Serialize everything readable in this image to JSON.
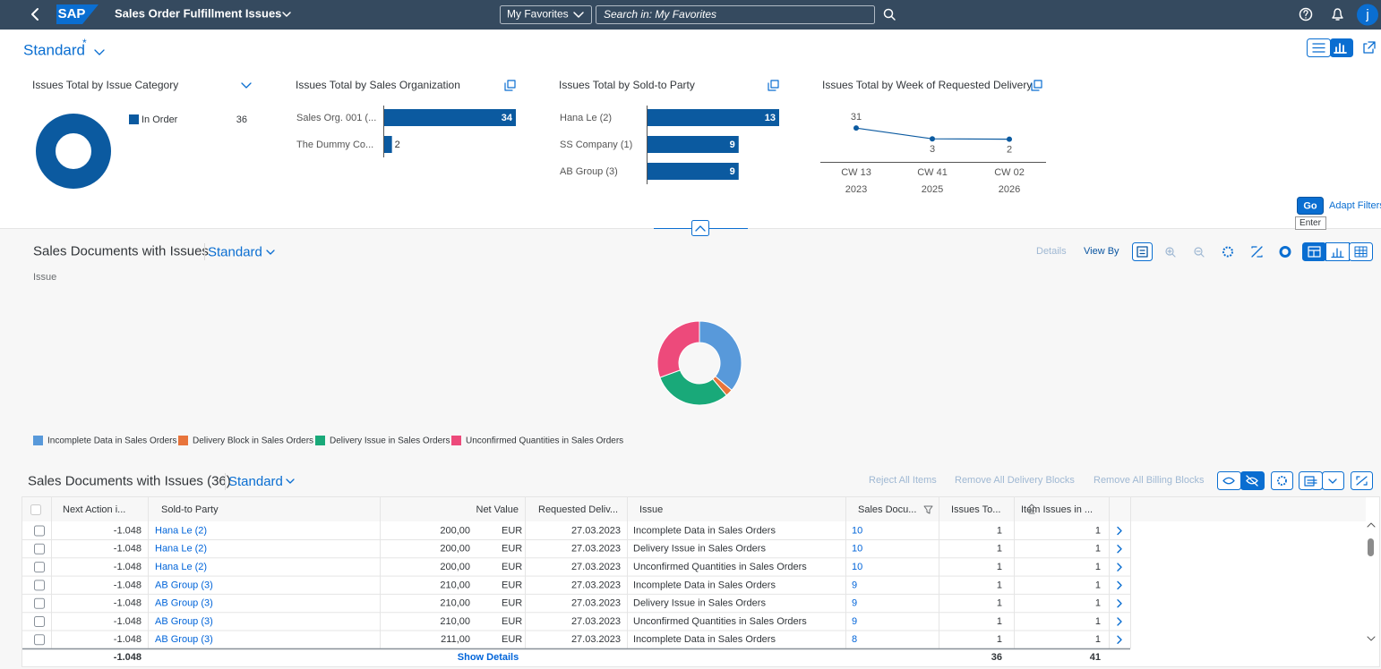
{
  "shell": {
    "logo": "SAP",
    "title": "Sales Order Fulfillment Issues",
    "favorites": "My Favorites",
    "search_placeholder": "Search in: My Favorites",
    "user": "j"
  },
  "variant": {
    "name": "Standard",
    "modified": "*"
  },
  "filter_charts": [
    {
      "type": "donut",
      "title": "Issues Total by Issue Category",
      "series": [
        {
          "name": "In Order",
          "value": 36,
          "color": "#0b5aa0"
        }
      ]
    },
    {
      "type": "bar",
      "title": "Issues Total by Sales Organization",
      "categories": [
        "Sales Org. 001 (...",
        "The Dummy Co..."
      ],
      "values": [
        34,
        2
      ],
      "color": "#0b5aa0"
    },
    {
      "type": "bar",
      "title": "Issues Total by Sold-to Party",
      "categories": [
        "Hana Le (2)",
        "SS Company (1)",
        "AB Group (3)"
      ],
      "values": [
        13,
        9,
        9
      ],
      "color": "#0b5aa0"
    },
    {
      "type": "line",
      "title": "Issues Total by Week of Requested Delivery",
      "categories": [
        "CW 13",
        "CW 41",
        "CW 02"
      ],
      "sub_categories": [
        "2023",
        "2025",
        "2026"
      ],
      "values": [
        31,
        3,
        2
      ],
      "color": "#0b5aa0"
    }
  ],
  "filter_bar": {
    "go": "Go",
    "go_tooltip": "Enter",
    "adapt": "Adapt Filters"
  },
  "chart_panel": {
    "title": "Sales Documents with Issues",
    "variant": "Standard",
    "details": "Details",
    "view_by": "View By",
    "dimension": "Issue",
    "chart": {
      "type": "donut",
      "series": [
        {
          "name": "Incomplete Data in Sales Orders",
          "value": 13,
          "color": "#5899da"
        },
        {
          "name": "Delivery Block in Sales Orders",
          "value": 1,
          "color": "#e8743b"
        },
        {
          "name": "Delivery Issue in Sales Orders",
          "value": 11,
          "color": "#19a979"
        },
        {
          "name": "Unconfirmed Quantities in Sales Orders",
          "value": 11,
          "color": "#ed4a7b"
        }
      ]
    }
  },
  "table": {
    "title": "Sales Documents with Issues (36)",
    "variant": "Standard",
    "actions": [
      "Reject All Items",
      "Remove All Delivery Blocks",
      "Remove All Billing Blocks"
    ],
    "columns": [
      "Next Action i...",
      "Sold-to Party",
      "Net Value",
      "Requested Deliv...",
      "Issue",
      "Sales Docu...",
      "Issues To...",
      "Item Issues in ..."
    ],
    "rows": [
      [
        "-1.048",
        "Hana Le (2)",
        "200,00",
        "EUR",
        "27.03.2023",
        "Incomplete Data in Sales Orders",
        "10",
        "1",
        "1"
      ],
      [
        "-1.048",
        "Hana Le (2)",
        "200,00",
        "EUR",
        "27.03.2023",
        "Delivery Issue in Sales Orders",
        "10",
        "1",
        "1"
      ],
      [
        "-1.048",
        "Hana Le (2)",
        "200,00",
        "EUR",
        "27.03.2023",
        "Unconfirmed Quantities in Sales Orders",
        "10",
        "1",
        "1"
      ],
      [
        "-1.048",
        "AB Group (3)",
        "210,00",
        "EUR",
        "27.03.2023",
        "Incomplete Data in Sales Orders",
        "9",
        "1",
        "1"
      ],
      [
        "-1.048",
        "AB Group (3)",
        "210,00",
        "EUR",
        "27.03.2023",
        "Delivery Issue in Sales Orders",
        "9",
        "1",
        "1"
      ],
      [
        "-1.048",
        "AB Group (3)",
        "210,00",
        "EUR",
        "27.03.2023",
        "Unconfirmed Quantities in Sales Orders",
        "9",
        "1",
        "1"
      ],
      [
        "-1.048",
        "AB Group (3)",
        "211,00",
        "EUR",
        "27.03.2023",
        "Incomplete Data in Sales Orders",
        "8",
        "1",
        "1"
      ]
    ],
    "footer": {
      "next_action": "-1.048",
      "show_details": "Show Details",
      "issues_total": "36",
      "item_issues": "41"
    }
  }
}
